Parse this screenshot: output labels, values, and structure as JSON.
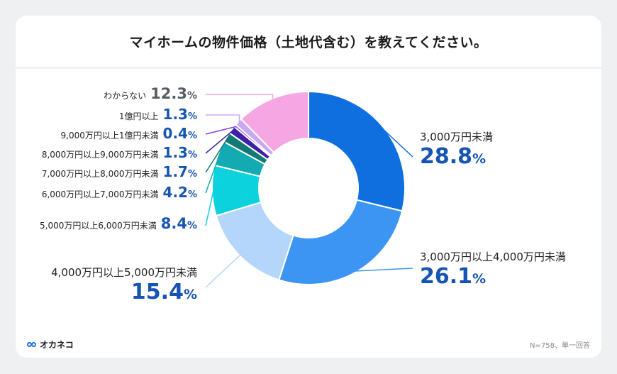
{
  "title": "マイホームの物件価格（土地代含む）を教えてください。",
  "brand": "オカネコ",
  "note": "N=758、単一回答",
  "percent_sign": "%",
  "chart_data": {
    "type": "pie",
    "variant": "donut",
    "title": "マイホームの物件価格（土地代含む）を教えてください。",
    "unit": "%",
    "slices": [
      {
        "label": "3,000万円未満",
        "value": 28.8,
        "value_text": "28.8",
        "color": "#0f6fde"
      },
      {
        "label": "3,000万円以上4,000万円未満",
        "value": 26.1,
        "value_text": "26.1",
        "color": "#3c95f2"
      },
      {
        "label": "4,000万円以上5,000万円未満",
        "value": 15.4,
        "value_text": "15.4",
        "color": "#b5d6fb"
      },
      {
        "label": "5,000万円以上6,000万円未満",
        "value": 8.4,
        "value_text": "8.4",
        "color": "#0cd2dd"
      },
      {
        "label": "6,000万円以上7,000万円未満",
        "value": 4.2,
        "value_text": "4.2",
        "color": "#13aab2"
      },
      {
        "label": "7,000万円以上8,000万円未満",
        "value": 1.7,
        "value_text": "1.7",
        "color": "#137a73"
      },
      {
        "label": "8,000万円以上9,000万円未満",
        "value": 1.3,
        "value_text": "1.3",
        "color": "#3d1fa8"
      },
      {
        "label": "9,000万円以上1億円未満",
        "value": 0.4,
        "value_text": "0.4",
        "color": "#8a3fe2"
      },
      {
        "label": "1億円以上",
        "value": 1.3,
        "value_text": "1.3",
        "color": "#c8a8f2"
      },
      {
        "label": "わからない",
        "value": 12.3,
        "value_text": "12.3",
        "color": "#f6a6e3"
      }
    ]
  }
}
